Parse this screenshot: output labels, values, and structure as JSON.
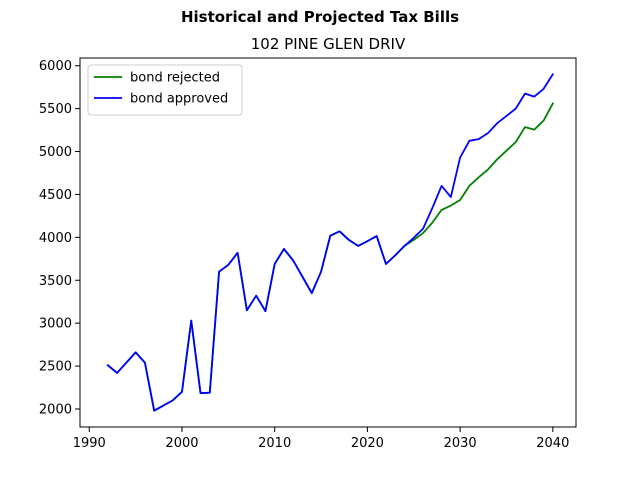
{
  "chart_data": {
    "type": "line",
    "suptitle": "Historical and Projected Tax Bills",
    "title": "102 PINE GLEN DRIV",
    "xlabel": "",
    "ylabel": "",
    "xlim": [
      1989,
      2042.5
    ],
    "ylim": [
      1790,
      6090
    ],
    "xticks": [
      1990,
      2000,
      2010,
      2020,
      2030,
      2040
    ],
    "yticks": [
      2000,
      2500,
      3000,
      3500,
      4000,
      4500,
      5000,
      5500,
      6000
    ],
    "grid": false,
    "legend": "top-left",
    "series": [
      {
        "name": "bond rejected",
        "color": "#008000",
        "x": [
          1992,
          1993,
          1995,
          1996,
          1997,
          1999,
          2000,
          2001,
          2002,
          2003,
          2004,
          2005,
          2006,
          2007,
          2008,
          2009,
          2010,
          2011,
          2012,
          2014,
          2015,
          2016,
          2017,
          2018,
          2019,
          2020,
          2021,
          2022,
          2023,
          2024,
          2025,
          2026,
          2027,
          2028,
          2029,
          2030,
          2031,
          2032,
          2033,
          2034,
          2035,
          2036,
          2037,
          2038,
          2039,
          2040
        ],
        "values": [
          2510,
          2420,
          2660,
          2540,
          1980,
          2100,
          2200,
          3030,
          2185,
          2190,
          3600,
          3680,
          3820,
          3150,
          3320,
          3140,
          3690,
          3865,
          3730,
          3350,
          3600,
          4020,
          4070,
          3970,
          3900,
          3955,
          4015,
          3690,
          3790,
          3900,
          3970,
          4050,
          4170,
          4320,
          4370,
          4435,
          4600,
          4700,
          4790,
          4910,
          5010,
          5110,
          5285,
          5255,
          5360,
          5560
        ]
      },
      {
        "name": "bond approved",
        "color": "#0000ff",
        "x": [
          1992,
          1993,
          1995,
          1996,
          1997,
          1999,
          2000,
          2001,
          2002,
          2003,
          2004,
          2005,
          2006,
          2007,
          2008,
          2009,
          2010,
          2011,
          2012,
          2014,
          2015,
          2016,
          2017,
          2018,
          2019,
          2020,
          2021,
          2022,
          2023,
          2024,
          2025,
          2026,
          2027,
          2028,
          2029,
          2030,
          2031,
          2032,
          2033,
          2034,
          2035,
          2036,
          2037,
          2038,
          2039,
          2040
        ],
        "values": [
          2510,
          2420,
          2660,
          2540,
          1980,
          2100,
          2200,
          3030,
          2185,
          2190,
          3600,
          3680,
          3820,
          3150,
          3320,
          3140,
          3690,
          3865,
          3730,
          3350,
          3600,
          4020,
          4070,
          3970,
          3900,
          3955,
          4015,
          3690,
          3790,
          3900,
          3995,
          4100,
          4340,
          4600,
          4470,
          4930,
          5125,
          5145,
          5215,
          5330,
          5415,
          5500,
          5675,
          5640,
          5730,
          5900
        ]
      }
    ]
  }
}
